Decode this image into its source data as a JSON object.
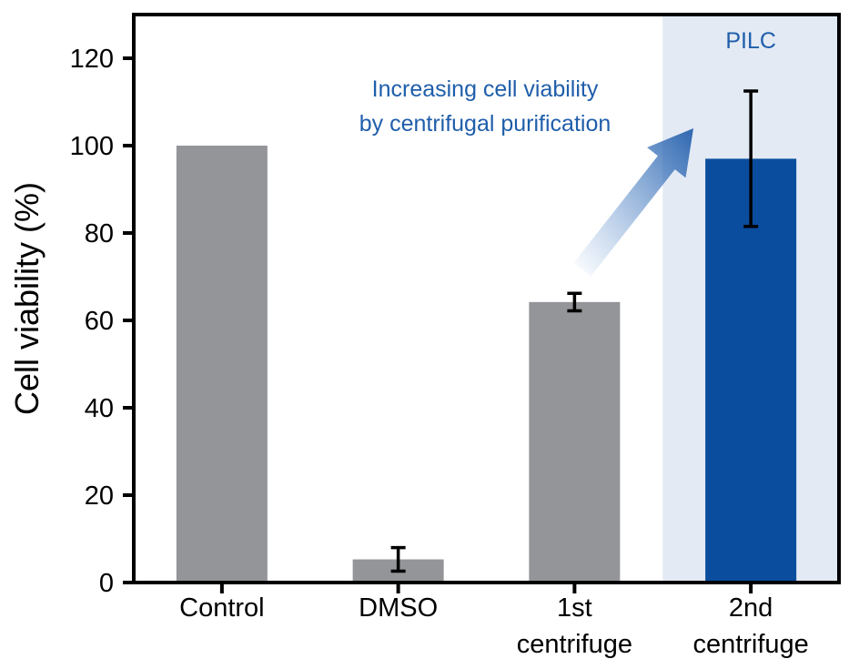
{
  "chart_data": {
    "type": "bar",
    "title": "",
    "xlabel": "",
    "ylabel": "Cell viability (%)",
    "ylim": [
      0,
      130
    ],
    "yticks": [
      0,
      20,
      40,
      60,
      80,
      100,
      120
    ],
    "grid": false,
    "categories": [
      [
        "Control"
      ],
      [
        "DMSO"
      ],
      [
        "1st",
        "centrifuge"
      ],
      [
        "2nd",
        "centrifuge"
      ]
    ],
    "values": [
      100,
      5.3,
      64.2,
      97
    ],
    "errors": [
      null,
      2.7,
      2.0,
      15.5
    ],
    "bar_colors": [
      "#939598",
      "#939598",
      "#939598",
      "#0a4d9e"
    ],
    "highlight": {
      "category_index": 3,
      "label": "PILC",
      "background": "#e3eaf4"
    },
    "annotation": {
      "lines": [
        "Increasing cell viability",
        "by centrifugal purification"
      ],
      "color": "#1f5eaa"
    }
  }
}
